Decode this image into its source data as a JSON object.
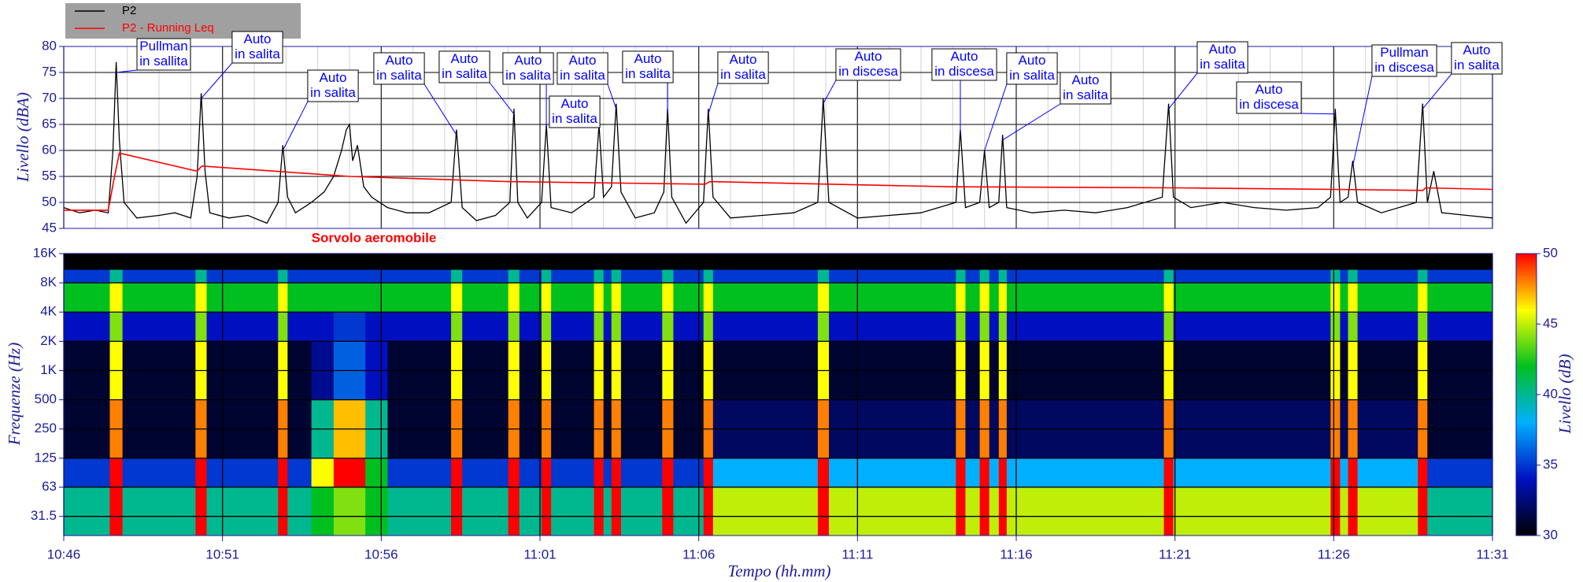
{
  "chart_data": [
    {
      "type": "line",
      "y_label": "Livello (dBA)",
      "xlim": [
        0,
        45
      ],
      "ylim": [
        45,
        80
      ],
      "yticks": [
        45,
        50,
        55,
        60,
        65,
        70,
        75,
        80
      ],
      "grid": true,
      "legend": "top-left",
      "series": [
        {
          "name": "P2",
          "color": "#000000",
          "x": [
            0,
            0.5,
            1.0,
            1.4,
            1.55,
            1.65,
            1.75,
            1.9,
            2.3,
            3,
            3.5,
            4.0,
            4.2,
            4.33,
            4.45,
            4.6,
            5.2,
            5.8,
            6.4,
            6.75,
            6.9,
            7.05,
            7.3,
            7.8,
            8.2,
            8.5,
            8.75,
            8.9,
            9.0,
            9.1,
            9.25,
            9.45,
            9.7,
            10.2,
            10.8,
            11.5,
            12.2,
            12.37,
            12.55,
            13.0,
            13.6,
            14.05,
            14.18,
            14.3,
            14.6,
            15.05,
            15.2,
            15.35,
            16.0,
            16.7,
            16.86,
            17.0,
            17.25,
            17.4,
            17.55,
            18.0,
            18.6,
            18.9,
            19.02,
            19.15,
            19.6,
            20.15,
            20.3,
            20.45,
            21.0,
            22,
            23,
            23.75,
            23.92,
            24.1,
            25,
            26,
            27,
            28.1,
            28.24,
            28.4,
            28.85,
            29.0,
            29.15,
            29.45,
            29.57,
            29.7,
            30.5,
            31.5,
            32.5,
            33.5,
            34.6,
            34.8,
            34.95,
            35.5,
            36.5,
            37.5,
            38.5,
            39.5,
            39.9,
            40.05,
            40.2,
            40.45,
            40.6,
            40.75,
            41.5,
            42.6,
            42.8,
            42.95,
            43.15,
            43.4,
            44.2,
            45
          ],
          "values": [
            49,
            48,
            48.5,
            48,
            60,
            77,
            62,
            50,
            47,
            47.5,
            48,
            47,
            55,
            71,
            56,
            48,
            47,
            47.5,
            46,
            50,
            61,
            51,
            48,
            50,
            52,
            55,
            60,
            64,
            65,
            58,
            61,
            53,
            51,
            49,
            48,
            48,
            50,
            64,
            49,
            46.5,
            47.5,
            50,
            68,
            50,
            47,
            50,
            65,
            49,
            48,
            51,
            65,
            51,
            53,
            69,
            52,
            47,
            48,
            52,
            68,
            51,
            46,
            50,
            68,
            51,
            47,
            47.5,
            48,
            50,
            70,
            50,
            47,
            47.5,
            48,
            50,
            64,
            49,
            50,
            60,
            49,
            50,
            63,
            49,
            48,
            48.5,
            48,
            49,
            51,
            69,
            51,
            49,
            50,
            49,
            48.5,
            49,
            51,
            68,
            50,
            51,
            58,
            50,
            48,
            50,
            69,
            50,
            56,
            48,
            47.5,
            47
          ]
        },
        {
          "name": "P2 - Running Leq",
          "color": "#ff0000",
          "x": [
            0,
            1.4,
            1.6,
            1.75,
            4.2,
            4.35,
            9,
            14,
            20.2,
            20.35,
            28,
            35,
            40,
            42.8,
            42.9,
            45
          ],
          "values": [
            48.5,
            48.5,
            55,
            59.5,
            56,
            57,
            55,
            54,
            53.5,
            54,
            53,
            52.8,
            52.5,
            52.3,
            52.8,
            52.5
          ]
        }
      ],
      "annotations": [
        {
          "text": [
            "Pullman",
            "in sallita"
          ],
          "x": 1.65,
          "y": 75
        },
        {
          "text": [
            "Auto",
            "in salita"
          ],
          "x": 4.33,
          "y": 70
        },
        {
          "text": [
            "Auto",
            "in salita"
          ],
          "x": 6.9,
          "y": 60
        },
        {
          "text": [
            "Auto",
            "in salita"
          ],
          "x": 12.37,
          "y": 63
        },
        {
          "text": [
            "Auto",
            "in salita"
          ],
          "x": 14.18,
          "y": 67
        },
        {
          "text": [
            "Auto",
            "in salita"
          ],
          "x": 15.2,
          "y": 64
        },
        {
          "text": [
            "Auto",
            "in salita"
          ],
          "x": 17.4,
          "y": 68
        },
        {
          "text": [
            "Auto",
            "in salita"
          ],
          "x": 16.86,
          "y": 64
        },
        {
          "text": [
            "Auto",
            "in salita"
          ],
          "x": 19.02,
          "y": 67
        },
        {
          "text": [
            "Auto",
            "in salita"
          ],
          "x": 20.3,
          "y": 67
        },
        {
          "text": [
            "Auto",
            "in discesa"
          ],
          "x": 23.92,
          "y": 69
        },
        {
          "text": [
            "Auto",
            "in discesa"
          ],
          "x": 28.24,
          "y": 63
        },
        {
          "text": [
            "Auto",
            "in salita"
          ],
          "x": 29.0,
          "y": 60
        },
        {
          "text": [
            "Auto",
            "in salita"
          ],
          "x": 29.57,
          "y": 62
        },
        {
          "text": [
            "Auto",
            "in salita"
          ],
          "x": 34.8,
          "y": 68
        },
        {
          "text": [
            "Auto",
            "in discesa"
          ],
          "x": 40.05,
          "y": 67
        },
        {
          "text": [
            "Pullman",
            "in discesa"
          ],
          "x": 40.6,
          "y": 57
        },
        {
          "text": [
            "Auto",
            "in salita"
          ],
          "x": 42.8,
          "y": 68
        }
      ],
      "note": "Sorvolo aeromobile",
      "note_color": "#ff0000"
    },
    {
      "type": "heatmap",
      "x_label": "Tempo (hh.mm)",
      "y_label": "Frequenze (Hz)",
      "z_label": "Livello (dB)",
      "xlim": [
        0,
        45
      ],
      "xticks": [
        {
          "value": 0,
          "label": "10:46"
        },
        {
          "value": 5,
          "label": "10:51"
        },
        {
          "value": 10,
          "label": "10:56"
        },
        {
          "value": 15,
          "label": "11:01"
        },
        {
          "value": 20,
          "label": "11:06"
        },
        {
          "value": 25,
          "label": "11:11"
        },
        {
          "value": 30,
          "label": "11:16"
        },
        {
          "value": 35,
          "label": "11:21"
        },
        {
          "value": 40,
          "label": "11:26"
        },
        {
          "value": 45,
          "label": "11:31"
        }
      ],
      "ylim": [
        20,
        16000
      ],
      "log_y": true,
      "yticks": [
        31.5,
        63,
        125,
        250,
        500,
        {
          "value": 1000,
          "label": "1K"
        },
        {
          "value": 2000,
          "label": "2K"
        },
        {
          "value": 4000,
          "label": "4K"
        },
        {
          "value": 8000,
          "label": "8K"
        },
        {
          "value": 16000,
          "label": "16K"
        }
      ],
      "zlim": [
        30,
        50
      ],
      "zticks": [
        30,
        35,
        40,
        45,
        50
      ],
      "colors": [
        "#000000",
        "#0010c0",
        "#00b0ff",
        "#00c020",
        "#ffff00",
        "#ff0000"
      ],
      "x_edges": [
        0,
        1.45,
        1.85,
        4.15,
        4.5,
        6.75,
        7.05,
        7.8,
        8.5,
        9.5,
        10.2,
        12.2,
        12.55,
        14.0,
        14.35,
        15.05,
        15.35,
        16.7,
        17.0,
        17.25,
        17.55,
        18.85,
        19.2,
        20.15,
        20.45,
        23.75,
        24.1,
        28.1,
        28.4,
        28.85,
        29.15,
        29.45,
        29.7,
        34.65,
        34.95,
        39.9,
        40.2,
        40.45,
        40.75,
        42.65,
        42.95,
        45
      ],
      "y_edges": [
        20,
        63,
        125,
        500,
        2000,
        4000,
        8000,
        11000,
        16000
      ],
      "z": [
        [
          40,
          35,
          31,
          31,
          34,
          42,
          35,
          30
        ],
        [
          50,
          50,
          48,
          46,
          44,
          46,
          40,
          30
        ],
        [
          40,
          35,
          31,
          31,
          34,
          42,
          35,
          30
        ],
        [
          50,
          50,
          48,
          46,
          44,
          46,
          40,
          30
        ],
        [
          40,
          35,
          31,
          31,
          34,
          42,
          35,
          30
        ],
        [
          50,
          50,
          48,
          46,
          44,
          46,
          40,
          30
        ],
        [
          40,
          35,
          31,
          31,
          34,
          42,
          35,
          30
        ],
        [
          42,
          46,
          40,
          33,
          34,
          42,
          35,
          30
        ],
        [
          44,
          50,
          47,
          36,
          35,
          42,
          35,
          30
        ],
        [
          42,
          42,
          40,
          34,
          34,
          42,
          35,
          30
        ],
        [
          40,
          35,
          31,
          31,
          34,
          42,
          35,
          30
        ],
        [
          50,
          50,
          48,
          46,
          44,
          46,
          40,
          30
        ],
        [
          40,
          35,
          31,
          31,
          34,
          42,
          35,
          30
        ],
        [
          50,
          50,
          48,
          46,
          44,
          46,
          40,
          30
        ],
        [
          40,
          35,
          31,
          31,
          34,
          42,
          35,
          30
        ],
        [
          50,
          50,
          48,
          46,
          44,
          46,
          40,
          30
        ],
        [
          40,
          35,
          31,
          31,
          34,
          42,
          35,
          30
        ],
        [
          50,
          50,
          48,
          46,
          44,
          46,
          40,
          30
        ],
        [
          40,
          35,
          31,
          31,
          34,
          42,
          35,
          30
        ],
        [
          50,
          50,
          48,
          46,
          44,
          46,
          40,
          30
        ],
        [
          40,
          35,
          31,
          31,
          34,
          42,
          35,
          30
        ],
        [
          50,
          50,
          48,
          46,
          44,
          46,
          40,
          30
        ],
        [
          40,
          35,
          31,
          31,
          34,
          42,
          35,
          30
        ],
        [
          50,
          50,
          48,
          46,
          44,
          46,
          40,
          30
        ],
        [
          45,
          38,
          32,
          31,
          34,
          42,
          35,
          30
        ],
        [
          50,
          50,
          48,
          46,
          44,
          46,
          40,
          30
        ],
        [
          45,
          38,
          32,
          31,
          34,
          42,
          35,
          30
        ],
        [
          50,
          50,
          48,
          46,
          44,
          46,
          40,
          30
        ],
        [
          45,
          38,
          32,
          31,
          34,
          42,
          35,
          30
        ],
        [
          50,
          50,
          48,
          46,
          44,
          46,
          40,
          30
        ],
        [
          45,
          38,
          32,
          31,
          34,
          42,
          35,
          30
        ],
        [
          50,
          50,
          48,
          46,
          44,
          46,
          40,
          30
        ],
        [
          45,
          38,
          32,
          31,
          34,
          42,
          35,
          30
        ],
        [
          50,
          50,
          48,
          46,
          44,
          46,
          40,
          30
        ],
        [
          45,
          38,
          32,
          31,
          34,
          42,
          35,
          30
        ],
        [
          50,
          50,
          48,
          46,
          44,
          46,
          40,
          30
        ],
        [
          45,
          38,
          32,
          31,
          34,
          42,
          35,
          30
        ],
        [
          50,
          50,
          48,
          46,
          44,
          46,
          40,
          30
        ],
        [
          45,
          38,
          32,
          31,
          34,
          42,
          35,
          30
        ],
        [
          50,
          50,
          48,
          46,
          44,
          46,
          40,
          30
        ],
        [
          40,
          35,
          31,
          31,
          34,
          42,
          35,
          30
        ]
      ]
    }
  ]
}
